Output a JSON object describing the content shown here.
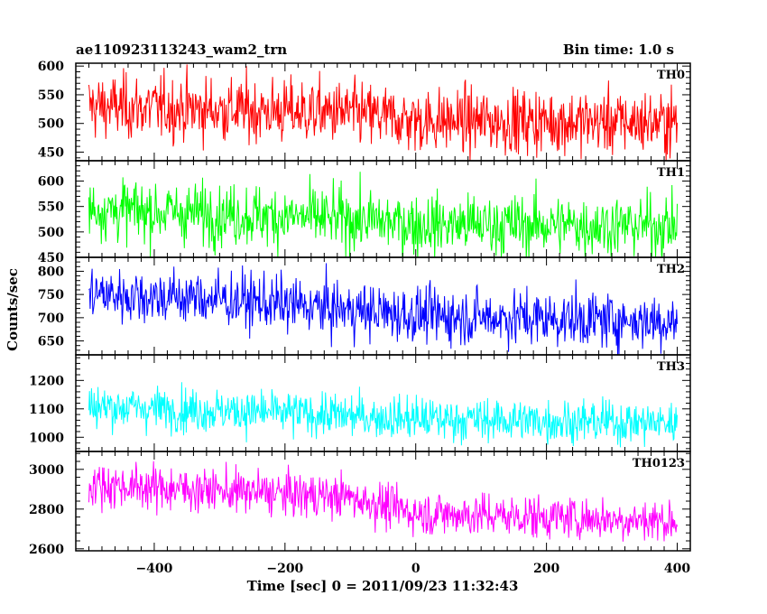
{
  "header": {
    "title": "ae110923113243_wam2_trn",
    "bin_time": "Bin time: 1.0 s"
  },
  "chart_data": {
    "type": "line",
    "title": "ae110923113243_wam2_trn",
    "subtitle": "Bin time: 1.0 s",
    "xlabel": "Time [sec] 0 = 2011/09/23 11:32:43",
    "ylabel": "Counts/sec",
    "xlim": [
      -520,
      420
    ],
    "x_range": [
      -500,
      400
    ],
    "x_ticks": [
      -400,
      -200,
      0,
      200,
      400
    ],
    "grid": false,
    "panels": [
      {
        "name": "TH0",
        "color": "#ff0000",
        "ylim": [
          435,
          605
        ],
        "y_ticks": [
          450,
          500,
          550,
          600
        ],
        "trend": [
          [
            -500,
            530
          ],
          [
            -100,
            518
          ],
          [
            0,
            505
          ],
          [
            400,
            502
          ]
        ],
        "noise_sd": 28
      },
      {
        "name": "TH1",
        "color": "#00ff00",
        "ylim": [
          450,
          640
        ],
        "y_ticks": [
          450,
          500,
          550,
          600
        ],
        "trend": [
          [
            -500,
            545
          ],
          [
            -100,
            525
          ],
          [
            0,
            515
          ],
          [
            400,
            512
          ]
        ],
        "noise_sd": 30
      },
      {
        "name": "TH2",
        "color": "#0000ff",
        "ylim": [
          620,
          830
        ],
        "y_ticks": [
          650,
          700,
          750,
          800
        ],
        "trend": [
          [
            -500,
            752
          ],
          [
            -300,
            740
          ],
          [
            0,
            705
          ],
          [
            400,
            692
          ]
        ],
        "noise_sd": 30
      },
      {
        "name": "TH3",
        "color": "#00ffff",
        "ylim": [
          950,
          1290
        ],
        "y_ticks": [
          1000,
          1100,
          1200
        ],
        "trend": [
          [
            -500,
            1110
          ],
          [
            -200,
            1085
          ],
          [
            0,
            1065
          ],
          [
            400,
            1050
          ]
        ],
        "noise_sd": 38
      },
      {
        "name": "TH0123",
        "color": "#ff00ff",
        "ylim": [
          2590,
          3090
        ],
        "y_ticks": [
          2600,
          2800,
          3000
        ],
        "trend": [
          [
            -500,
            2925
          ],
          [
            -100,
            2860
          ],
          [
            0,
            2780
          ],
          [
            400,
            2740
          ]
        ],
        "noise_sd": 55
      }
    ]
  }
}
